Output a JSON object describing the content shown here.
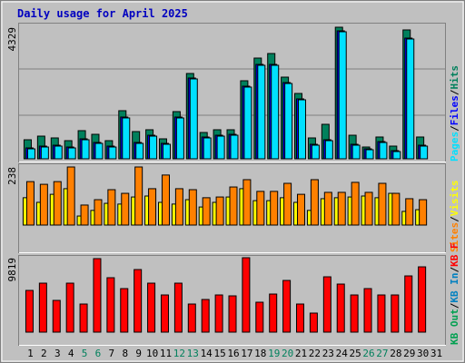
{
  "title": "Daily usage for April 2025",
  "categories": [
    "1",
    "2",
    "3",
    "4",
    "5",
    "6",
    "7",
    "8",
    "9",
    "10",
    "11",
    "12",
    "13",
    "14",
    "15",
    "16",
    "17",
    "18",
    "19",
    "20",
    "21",
    "22",
    "23",
    "24",
    "25",
    "26",
    "27",
    "28",
    "29",
    "30",
    "31"
  ],
  "category_colors": [
    "#000000",
    "#000000",
    "#000000",
    "#000000",
    "#00805c",
    "#00805c",
    "#000000",
    "#000000",
    "#000000",
    "#000000",
    "#000000",
    "#00805c",
    "#00805c",
    "#000000",
    "#000000",
    "#000000",
    "#000000",
    "#000000",
    "#00805c",
    "#00805c",
    "#000000",
    "#000000",
    "#000000",
    "#000000",
    "#000000",
    "#00805c",
    "#00805c",
    "#000000",
    "#000000",
    "#000000",
    "#000000"
  ],
  "chart_data": [
    {
      "type": "bar",
      "legend_separator": "/",
      "ylim": [
        0,
        4329
      ],
      "yticks": [
        4329
      ],
      "series": [
        {
          "name": "Hits",
          "color": "#00805c",
          "values": [
            627,
            746,
            687,
            597,
            926,
            806,
            597,
            1583,
            896,
            956,
            657,
            1553,
            2807,
            866,
            956,
            956,
            2568,
            3314,
            3464,
            2687,
            2150,
            687,
            1135,
            4329,
            776,
            388,
            717,
            418,
            4240,
            717,
            null
          ]
        },
        {
          "name": "Files",
          "color": "#0000ff",
          "values": [
            358,
            418,
            448,
            388,
            657,
            538,
            418,
            1374,
            538,
            776,
            508,
            1374,
            2658,
            717,
            776,
            806,
            2389,
            3106,
            3106,
            2508,
            1971,
            478,
            627,
            4210,
            478,
            329,
            567,
            269,
            3971,
            448,
            null
          ]
        },
        {
          "name": "Pages",
          "color": "#00e0ff",
          "values": [
            328,
            388,
            418,
            358,
            627,
            508,
            388,
            1344,
            508,
            746,
            478,
            1344,
            2628,
            687,
            746,
            776,
            2359,
            3076,
            3076,
            2478,
            1941,
            448,
            597,
            4180,
            448,
            299,
            537,
            239,
            3941,
            418,
            null
          ]
        }
      ]
    },
    {
      "type": "bar",
      "legend_separator": "/",
      "ylim": [
        0,
        238
      ],
      "yticks": [
        238
      ],
      "series": [
        {
          "name": "Visits",
          "color": "#ffff00",
          "values": [
            112,
            93,
            126,
            149,
            37,
            60,
            89,
            86,
            115,
            119,
            93,
            86,
            104,
            74,
            93,
            115,
            149,
            100,
            100,
            112,
            93,
            60,
            108,
            112,
            115,
            119,
            112,
            130,
            56,
            63,
            null
          ]
        },
        {
          "name": "Sites",
          "color": "#ff8000",
          "values": [
            178,
            167,
            178,
            238,
            82,
            104,
            145,
            130,
            238,
            149,
            205,
            149,
            145,
            112,
            115,
            156,
            186,
            138,
            138,
            171,
            126,
            186,
            134,
            134,
            175,
            134,
            171,
            130,
            108,
            104,
            null
          ]
        }
      ]
    },
    {
      "type": "bar",
      "legend_separator": "/",
      "ylim": [
        0,
        9819
      ],
      "yticks": [
        9819
      ],
      "series": [
        {
          "name": "KB F",
          "color": "#ff0000",
          "values": [
            5506,
            6464,
            4190,
            6464,
            3711,
            9700,
            7182,
            5746,
            8259,
            6464,
            4908,
            6464,
            3711,
            4309,
            4908,
            4788,
            9819,
            3950,
            5027,
            6823,
            3711,
            2514,
            7302,
            6344,
            4908,
            5746,
            4908,
            4908,
            7421,
            8618,
            null
          ]
        },
        {
          "name": "KB In",
          "color": "#0080c0",
          "values": [
            null,
            null,
            null,
            null,
            null,
            null,
            null,
            null,
            null,
            null,
            null,
            null,
            null,
            null,
            null,
            null,
            null,
            null,
            null,
            null,
            null,
            null,
            null,
            null,
            null,
            null,
            null,
            null,
            null,
            null,
            null
          ]
        },
        {
          "name": "KB Out",
          "color": "#00a050",
          "values": [
            null,
            null,
            null,
            null,
            null,
            null,
            null,
            null,
            null,
            null,
            null,
            null,
            null,
            null,
            null,
            null,
            null,
            null,
            null,
            null,
            null,
            null,
            null,
            null,
            null,
            null,
            null,
            null,
            null,
            null,
            null
          ]
        }
      ]
    }
  ]
}
